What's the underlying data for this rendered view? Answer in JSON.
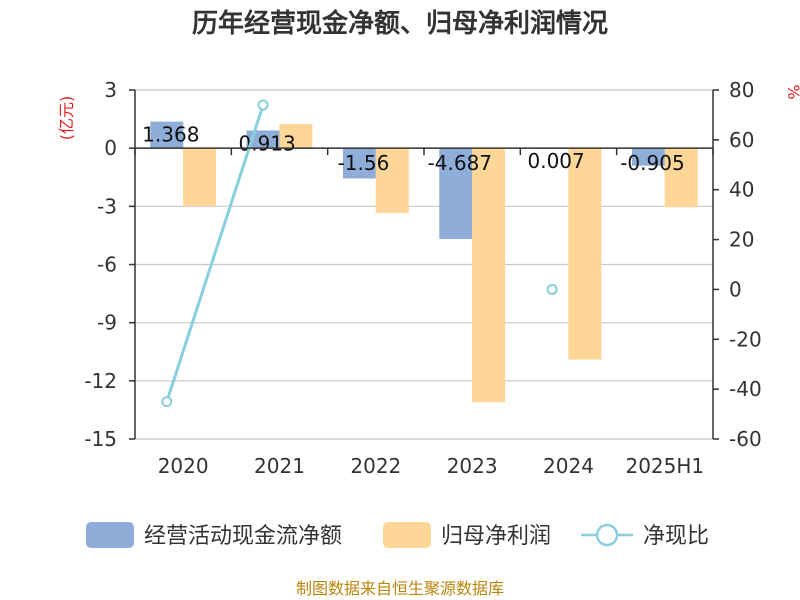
{
  "title": "历年经营现金净额、归母净利润情况",
  "source": "制图数据来自恒生聚源数据库",
  "chart_data": {
    "type": "bar",
    "categories": [
      "2020",
      "2021",
      "2022",
      "2023",
      "2024",
      "2025H1"
    ],
    "left_axis": {
      "unit": "(亿元)",
      "ylim": [
        -15,
        3
      ],
      "ticks": [
        3,
        0,
        -3,
        -6,
        -9,
        -12,
        -15
      ]
    },
    "right_axis": {
      "unit": "%",
      "ylim": [
        -60,
        80
      ],
      "ticks": [
        80,
        60,
        40,
        20,
        0,
        -20,
        -40,
        -60
      ]
    },
    "series": [
      {
        "name": "经营活动现金流净额",
        "kind": "bar",
        "axis": "left",
        "color": "#8fadd9",
        "values": [
          1.368,
          0.913,
          -1.56,
          -4.687,
          0.007,
          -0.905
        ],
        "labels": [
          "1.368",
          "0.913",
          "-1.56",
          "-4.687",
          "0.007",
          "-0.905"
        ]
      },
      {
        "name": "归母净利润",
        "kind": "bar",
        "axis": "left",
        "color": "#fdd698",
        "values": [
          -3.0,
          1.25,
          -3.35,
          -13.1,
          -10.9,
          -3.05
        ]
      },
      {
        "name": "净现比",
        "kind": "line",
        "axis": "right",
        "color": "#88d0dc",
        "values": [
          -45,
          74,
          null,
          null,
          0,
          null
        ]
      }
    ],
    "grid": true,
    "legend": "bottom"
  }
}
